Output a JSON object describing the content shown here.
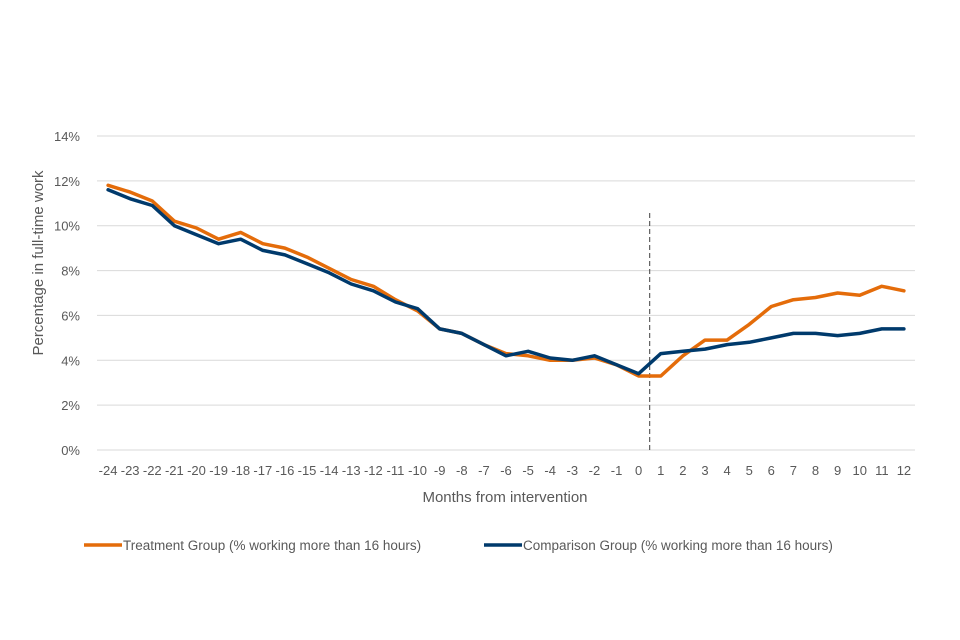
{
  "chart_data": {
    "type": "line",
    "title": "",
    "xlabel": "Months from intervention",
    "ylabel": "Percentage in full-time work",
    "x": [
      "-24",
      "-23",
      "-22",
      "-21",
      "-20",
      "-19",
      "-18",
      "-17",
      "-16",
      "-15",
      "-14",
      "-13",
      "-12",
      "-11",
      "-10",
      "-9",
      "-8",
      "-7",
      "-6",
      "-5",
      "-4",
      "-3",
      "-2",
      "-1",
      "0",
      "1",
      "2",
      "3",
      "4",
      "5",
      "6",
      "7",
      "8",
      "9",
      "10",
      "11",
      "12"
    ],
    "ylim": [
      0,
      14
    ],
    "yticks": [
      "0%",
      "2%",
      "4%",
      "6%",
      "8%",
      "10%",
      "12%",
      "14%"
    ],
    "grid": true,
    "legend_position": "bottom",
    "intervention_line_at": "0.5",
    "series": [
      {
        "name": "Treatment Group (% working more than 16 hours)",
        "color": "#E46C0A",
        "values": [
          11.8,
          11.5,
          11.1,
          10.2,
          9.9,
          9.4,
          9.7,
          9.2,
          9.0,
          8.6,
          8.1,
          7.6,
          7.3,
          6.7,
          6.2,
          5.4,
          5.2,
          4.7,
          4.3,
          4.2,
          4.0,
          4.0,
          4.1,
          3.8,
          3.3,
          3.3,
          4.2,
          4.9,
          4.9,
          5.6,
          6.4,
          6.7,
          6.8,
          7.0,
          6.9,
          7.3,
          7.1
        ]
      },
      {
        "name": "Comparison Group (% working more than 16 hours)",
        "color": "#003A6C",
        "values": [
          11.6,
          11.2,
          10.9,
          10.0,
          9.6,
          9.2,
          9.4,
          8.9,
          8.7,
          8.3,
          7.9,
          7.4,
          7.1,
          6.6,
          6.3,
          5.4,
          5.2,
          4.7,
          4.2,
          4.4,
          4.1,
          4.0,
          4.2,
          3.8,
          3.4,
          4.3,
          4.4,
          4.5,
          4.7,
          4.8,
          5.0,
          5.2,
          5.2,
          5.1,
          5.2,
          5.4,
          5.4
        ]
      }
    ]
  }
}
